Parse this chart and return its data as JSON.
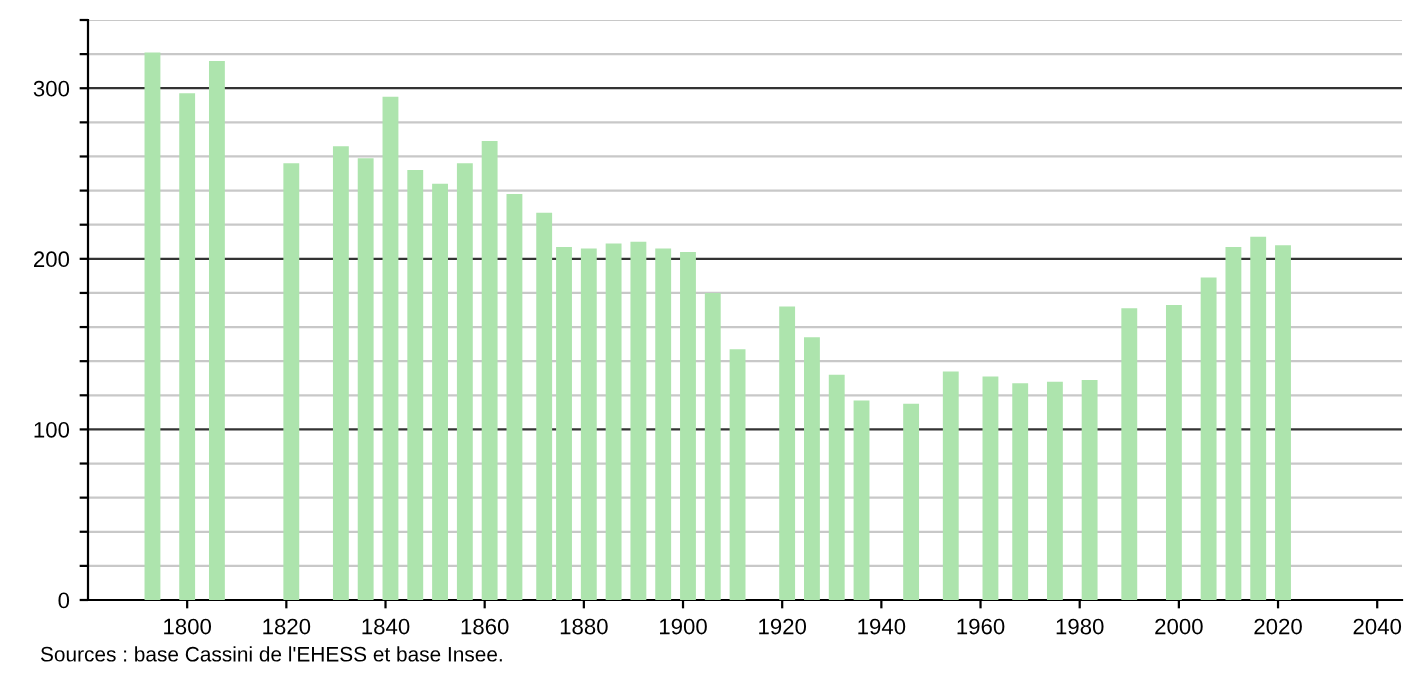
{
  "chart_data": {
    "type": "bar",
    "x": [
      1793,
      1800,
      1806,
      1821,
      1831,
      1836,
      1841,
      1846,
      1851,
      1856,
      1861,
      1866,
      1872,
      1876,
      1881,
      1886,
      1891,
      1896,
      1901,
      1906,
      1911,
      1921,
      1926,
      1931,
      1936,
      1946,
      1954,
      1962,
      1968,
      1975,
      1982,
      1990,
      1999,
      2006,
      2011,
      2016,
      2021
    ],
    "values": [
      321,
      297,
      316,
      256,
      266,
      259,
      295,
      252,
      244,
      256,
      269,
      238,
      227,
      207,
      206,
      209,
      210,
      206,
      204,
      180,
      147,
      172,
      154,
      132,
      117,
      115,
      134,
      131,
      127,
      128,
      129,
      171,
      173,
      189,
      207,
      213,
      208
    ],
    "color": "#ade4ad",
    "xlim": [
      1780,
      2045
    ],
    "xticks": [
      1800,
      1820,
      1840,
      1860,
      1880,
      1900,
      1920,
      1940,
      1960,
      1980,
      2000,
      2020,
      2040
    ],
    "ylim": [
      0,
      340
    ],
    "yticks": [
      0,
      {
        "value": 20,
        "label": null
      },
      {
        "value": 40,
        "label": null
      },
      {
        "value": 60,
        "label": null
      },
      {
        "value": 80,
        "label": null
      },
      100,
      {
        "value": 120,
        "label": null
      },
      {
        "value": 140,
        "label": null
      },
      {
        "value": 160,
        "label": null
      },
      {
        "value": 180,
        "label": null
      },
      200,
      {
        "value": 220,
        "label": null
      },
      {
        "value": 240,
        "label": null
      },
      {
        "value": 260,
        "label": null
      },
      {
        "value": 280,
        "label": null
      },
      300,
      {
        "value": 320,
        "label": null
      },
      {
        "value": 340,
        "label": null
      }
    ],
    "grid": "y",
    "annotations": [
      "Sources : base Cassini de l'EHESS et base Insee."
    ]
  }
}
